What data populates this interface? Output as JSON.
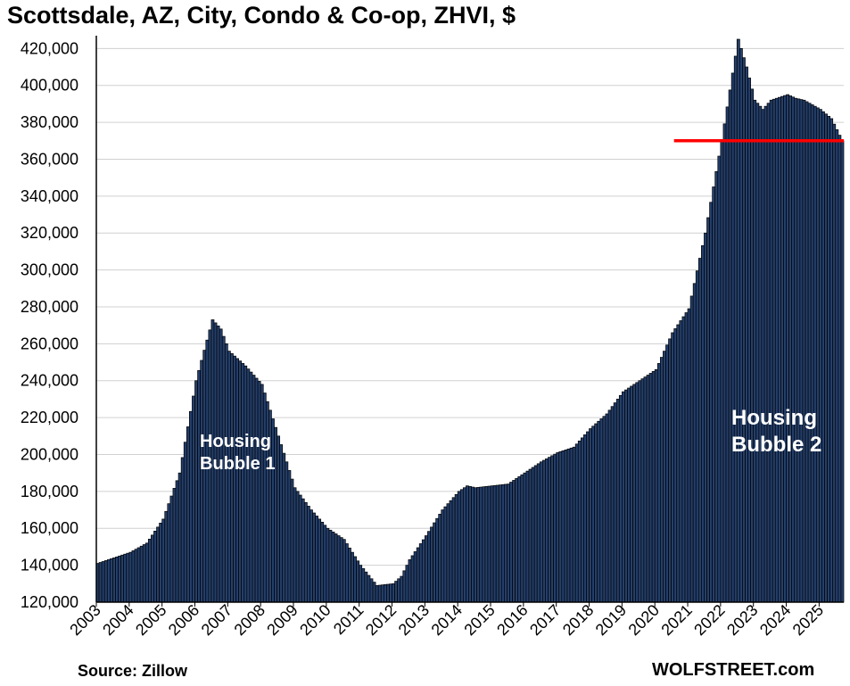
{
  "chart_data": {
    "type": "bar",
    "title": "Scottsdale, AZ, City, Condo & Co-op, ZHVI, $",
    "xlabel": "",
    "ylabel": "",
    "ylim": [
      120000,
      425000
    ],
    "yticks": [
      120000,
      140000,
      160000,
      180000,
      200000,
      220000,
      240000,
      260000,
      280000,
      300000,
      320000,
      340000,
      360000,
      380000,
      400000,
      420000
    ],
    "ytick_labels": [
      "120,000",
      "140,000",
      "160,000",
      "180,000",
      "200,000",
      "220,000",
      "240,000",
      "260,000",
      "280,000",
      "300,000",
      "320,000",
      "340,000",
      "360,000",
      "380,000",
      "400,000",
      "420,000"
    ],
    "xtick_labels": [
      "2003",
      "2004",
      "2005",
      "2006",
      "2007",
      "2008",
      "2009",
      "2010",
      "2011",
      "2012",
      "2013",
      "2014",
      "2015",
      "2016",
      "2017",
      "2018",
      "2019",
      "2020",
      "2021",
      "2022",
      "2023",
      "2024",
      "2025"
    ],
    "frequency": "monthly",
    "start": "2003-01",
    "end": "2025-09",
    "anchors": [
      [
        "2003-01",
        141000
      ],
      [
        "2004-01",
        147000
      ],
      [
        "2004-07",
        152000
      ],
      [
        "2005-01",
        165000
      ],
      [
        "2005-07",
        190000
      ],
      [
        "2006-01",
        240000
      ],
      [
        "2006-07",
        273000
      ],
      [
        "2006-10",
        268000
      ],
      [
        "2007-01",
        256000
      ],
      [
        "2007-07",
        248000
      ],
      [
        "2008-01",
        238000
      ],
      [
        "2008-07",
        210000
      ],
      [
        "2009-01",
        182000
      ],
      [
        "2009-07",
        170000
      ],
      [
        "2010-01",
        160000
      ],
      [
        "2010-07",
        154000
      ],
      [
        "2011-01",
        140000
      ],
      [
        "2011-07",
        129000
      ],
      [
        "2012-01",
        130000
      ],
      [
        "2012-04",
        134000
      ],
      [
        "2012-07",
        143000
      ],
      [
        "2013-01",
        156000
      ],
      [
        "2013-07",
        170000
      ],
      [
        "2014-01",
        180000
      ],
      [
        "2014-04",
        183000
      ],
      [
        "2014-07",
        182000
      ],
      [
        "2015-01",
        183000
      ],
      [
        "2015-07",
        184000
      ],
      [
        "2016-01",
        190000
      ],
      [
        "2016-07",
        196000
      ],
      [
        "2017-01",
        201000
      ],
      [
        "2017-07",
        204000
      ],
      [
        "2018-01",
        214000
      ],
      [
        "2018-07",
        222000
      ],
      [
        "2019-01",
        234000
      ],
      [
        "2019-07",
        240000
      ],
      [
        "2020-01",
        246000
      ],
      [
        "2020-07",
        266000
      ],
      [
        "2021-01",
        279000
      ],
      [
        "2021-07",
        320000
      ],
      [
        "2022-01",
        370000
      ],
      [
        "2022-07",
        425000
      ],
      [
        "2022-10",
        410000
      ],
      [
        "2023-01",
        392000
      ],
      [
        "2023-04",
        387000
      ],
      [
        "2023-07",
        392000
      ],
      [
        "2024-01",
        395000
      ],
      [
        "2024-04",
        393000
      ],
      [
        "2024-07",
        392000
      ],
      [
        "2025-01",
        387000
      ],
      [
        "2025-05",
        382000
      ],
      [
        "2025-09",
        370000
      ]
    ],
    "reference_line": {
      "value": 370000,
      "color": "#ff0000",
      "from": "2020-08",
      "to": "2025-09"
    },
    "annotations": [
      {
        "id": "bubble1",
        "lines": [
          "Housing",
          "Bubble 1"
        ]
      },
      {
        "id": "bubble2",
        "lines": [
          "Housing",
          "Bubble 2"
        ]
      }
    ],
    "bar_color": "#243f6b",
    "bar_edge_color": "#000000",
    "grid": true
  },
  "source": "Source: Zillow",
  "brand": "WOLFSTREET.com"
}
